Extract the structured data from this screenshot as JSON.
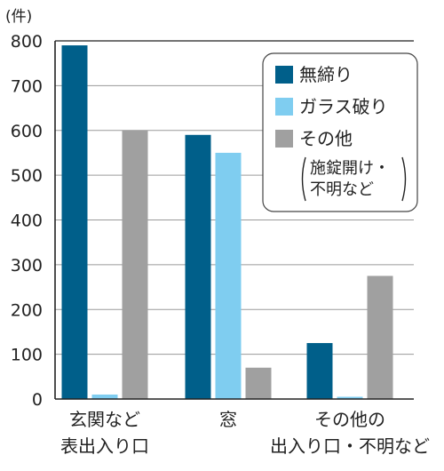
{
  "chart_data": {
    "type": "bar",
    "unit_label": "(件)",
    "categories": [
      [
        "玄関など",
        "表出入り口"
      ],
      [
        "窓"
      ],
      [
        "その他の",
        "出入り口・不明など"
      ]
    ],
    "series": [
      {
        "name": "無締り",
        "color": "#005f8a",
        "values": [
          790,
          590,
          125
        ]
      },
      {
        "name": "ガラス破り",
        "color": "#7fcdf0",
        "values": [
          10,
          550,
          5
        ]
      },
      {
        "name": "その他",
        "color": "#a0a0a0",
        "values": [
          600,
          70,
          275
        ]
      }
    ],
    "legend_note": [
      "施錠開け・",
      "不明など"
    ],
    "ylim": [
      0,
      800
    ],
    "yticks": [
      0,
      100,
      200,
      300,
      400,
      500,
      600,
      700,
      800
    ],
    "grid": true,
    "legend_position": "top-right"
  }
}
